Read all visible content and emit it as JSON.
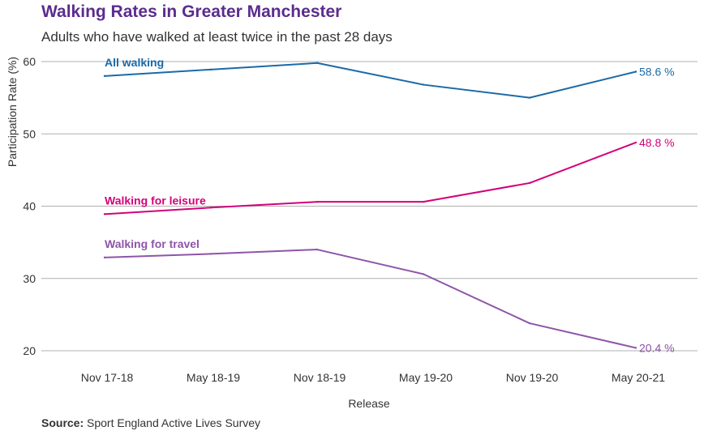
{
  "chart_data": {
    "type": "line",
    "title": "Walking Rates in Greater Manchester",
    "subtitle": "Adults who have walked at least twice in the past 28 days",
    "xlabel": "Release",
    "ylabel": "Participation Rate (%)",
    "categories": [
      "Nov 17-18",
      "May 18-19",
      "Nov 18-19",
      "May 19-20",
      "Nov 19-20",
      "May 20-21"
    ],
    "ylim": [
      20,
      60
    ],
    "yticks": [
      20,
      30,
      40,
      50,
      60
    ],
    "grid": true,
    "series": [
      {
        "name": "All walking",
        "color": "#1a6aa8",
        "values": [
          58.0,
          58.9,
          59.8,
          56.8,
          55.0,
          58.6
        ],
        "end_label": "58.6 %"
      },
      {
        "name": "Walking for leisure",
        "color": "#d4007a",
        "values": [
          38.9,
          39.8,
          40.6,
          40.6,
          43.2,
          48.8
        ],
        "end_label": "48.8 %"
      },
      {
        "name": "Walking for travel",
        "color": "#8e55a8",
        "values": [
          32.9,
          33.4,
          34.0,
          30.6,
          23.8,
          20.4
        ],
        "end_label": "20.4 %"
      }
    ]
  },
  "colors": {
    "title": "#5b2c8e",
    "grid": "#b0b0b0",
    "text": "#333333"
  },
  "source": {
    "label": "Source:",
    "text": " Sport England Active Lives Survey"
  }
}
